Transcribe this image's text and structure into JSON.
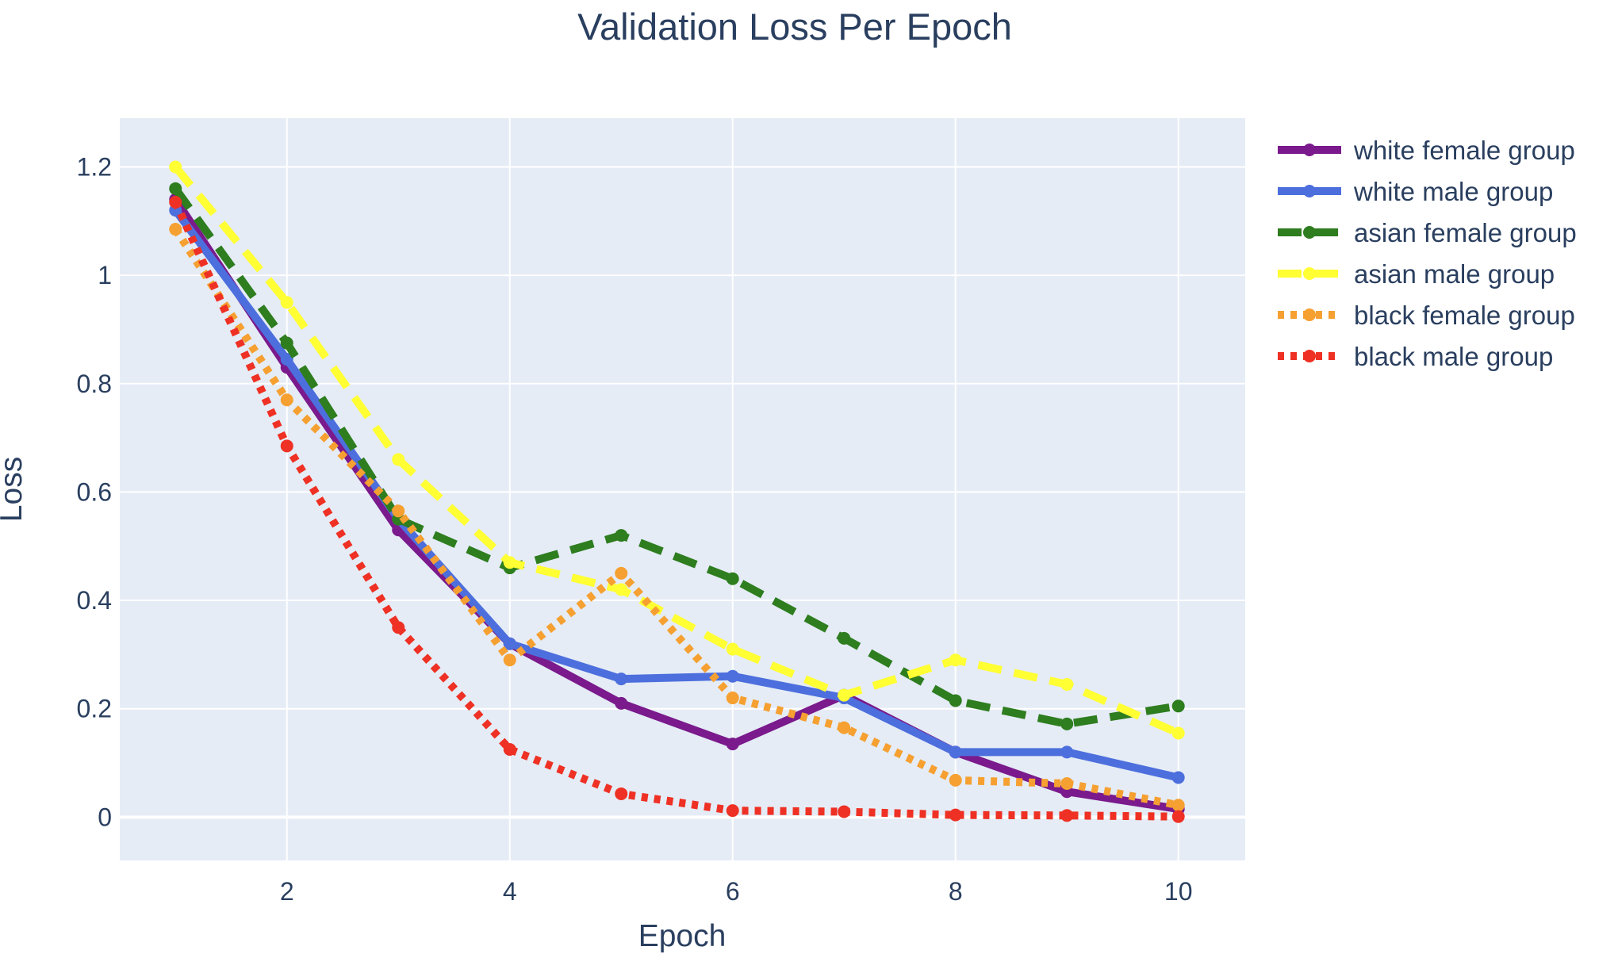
{
  "chart_data": {
    "type": "line",
    "title": "Validation Loss Per Epoch",
    "xlabel": "Epoch",
    "ylabel": "Loss",
    "xlim": [
      0.5,
      10.6
    ],
    "ylim": [
      -0.08,
      1.29
    ],
    "x_ticks": [
      2,
      4,
      6,
      8,
      10
    ],
    "y_ticks": [
      0,
      0.2,
      0.4,
      0.6,
      0.8,
      1,
      1.2
    ],
    "grid": true,
    "legend_position": "right",
    "background_color": "#e5ecf6",
    "x": [
      1,
      2,
      3,
      4,
      5,
      6,
      7,
      8,
      9,
      10
    ],
    "series": [
      {
        "name": "white female group",
        "color": "#7a1a8c",
        "dash": "solid",
        "values": [
          1.14,
          0.83,
          0.53,
          0.32,
          0.21,
          0.135,
          0.225,
          0.12,
          0.047,
          0.015
        ]
      },
      {
        "name": "white male group",
        "color": "#4d6fdd",
        "dash": "solid",
        "values": [
          1.12,
          0.845,
          0.55,
          0.32,
          0.255,
          0.26,
          0.22,
          0.12,
          0.12,
          0.073
        ]
      },
      {
        "name": "asian female group",
        "color": "#2e7d1f",
        "dash": "dash",
        "values": [
          1.16,
          0.875,
          0.55,
          0.46,
          0.52,
          0.44,
          0.33,
          0.215,
          0.172,
          0.205
        ]
      },
      {
        "name": "asian male group",
        "color": "#ffff33",
        "dash": "dash",
        "values": [
          1.2,
          0.95,
          0.66,
          0.47,
          0.42,
          0.31,
          0.225,
          0.29,
          0.245,
          0.155
        ]
      },
      {
        "name": "black female group",
        "color": "#f5a031",
        "dash": "dot",
        "values": [
          1.085,
          0.77,
          0.565,
          0.29,
          0.45,
          0.22,
          0.165,
          0.068,
          0.062,
          0.022
        ]
      },
      {
        "name": "black male group",
        "color": "#ee3124",
        "dash": "dot",
        "values": [
          1.135,
          0.685,
          0.35,
          0.125,
          0.043,
          0.012,
          0.01,
          0.004,
          0.003,
          0.001
        ]
      }
    ]
  }
}
